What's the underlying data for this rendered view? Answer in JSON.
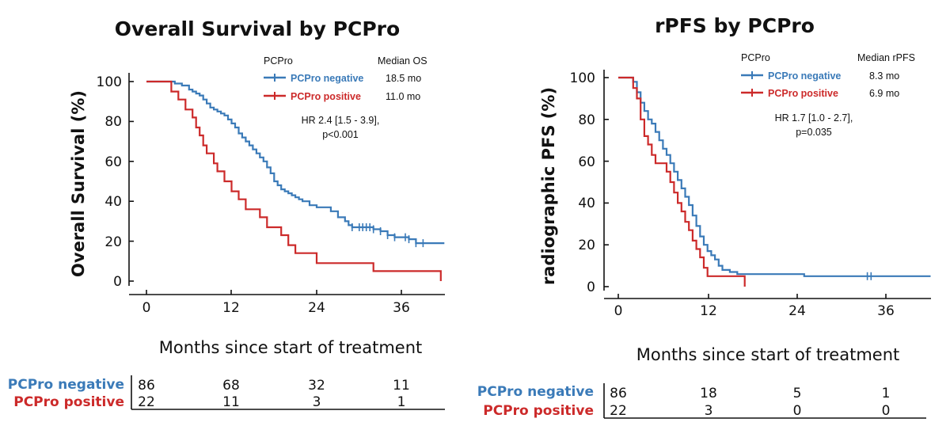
{
  "colors": {
    "negative": "#3a7ab8",
    "positive": "#cc2a2a"
  },
  "chart_data": [
    {
      "type": "line",
      "title": "Overall Survival by PCPro",
      "xlabel": "Months since start of treatment",
      "ylabel": "Overall Survival (%)",
      "xlim": [
        0,
        42
      ],
      "ylim": [
        0,
        100
      ],
      "xticks": [
        "0",
        "12",
        "24",
        "36"
      ],
      "yticks": [
        "0",
        "20",
        "40",
        "60",
        "80",
        "100"
      ],
      "legend": {
        "header": "PCPro",
        "median_header": "Median OS",
        "entries": [
          {
            "name": "PCPro negative",
            "median": "18.5 mo"
          },
          {
            "name": "PCPro positive",
            "median": "11.0 mo"
          }
        ],
        "hr_line1": "HR 2.4 [1.5 - 3.9],",
        "hr_line2": "p<0.001"
      },
      "series": [
        {
          "name": "PCPro negative",
          "x": [
            0,
            3,
            4,
            5,
            6,
            6.5,
            7,
            7.5,
            8,
            8.5,
            9,
            9.5,
            10,
            10.5,
            11,
            11.5,
            12,
            12.5,
            13,
            13.5,
            14,
            14.5,
            15,
            15.5,
            16,
            16.5,
            17,
            17.5,
            18,
            18.5,
            19,
            19.5,
            20,
            20.5,
            21,
            21.5,
            22,
            23,
            24,
            26,
            27,
            28,
            28.5,
            29,
            30,
            31,
            32,
            33,
            34,
            35,
            36,
            37,
            38,
            39,
            42
          ],
          "y": [
            100,
            100,
            99,
            98,
            96,
            95,
            94,
            93,
            91,
            89,
            87,
            86,
            85,
            84,
            83,
            81,
            79,
            77,
            74,
            72,
            70,
            68,
            66,
            64,
            62,
            60,
            57,
            54,
            50,
            48,
            46,
            45,
            44,
            43,
            42,
            41,
            40,
            38,
            37,
            35,
            32,
            30,
            28,
            27,
            27,
            27,
            26,
            25,
            23,
            22,
            22,
            21,
            19,
            19,
            19
          ],
          "censor_x": [
            29,
            30,
            30.5,
            31,
            31.5,
            32,
            33,
            34,
            35,
            36.5,
            37,
            38,
            39
          ]
        },
        {
          "name": "PCPro positive",
          "x": [
            0,
            3.5,
            4.5,
            5.5,
            6.5,
            7,
            7.5,
            8,
            8.5,
            9.5,
            10,
            11,
            12,
            13,
            14,
            16,
            17,
            19,
            20,
            21,
            22,
            24,
            25,
            27,
            28,
            32,
            41.5
          ],
          "y": [
            100,
            95,
            91,
            86,
            82,
            77,
            73,
            68,
            64,
            59,
            55,
            50,
            45,
            41,
            36,
            32,
            27,
            23,
            18,
            14,
            14,
            9,
            9,
            9,
            9,
            5,
            0
          ]
        }
      ],
      "risk_table": {
        "rows": [
          {
            "name": "PCPro negative",
            "values": [
              "86",
              "68",
              "32",
              "11"
            ]
          },
          {
            "name": "PCPro positive",
            "values": [
              "22",
              "11",
              "3",
              "1"
            ]
          }
        ]
      }
    },
    {
      "type": "line",
      "title": "rPFS by PCPro",
      "xlabel": "Months since start of treatment",
      "ylabel": "radiographic PFS (%)",
      "xlim": [
        0,
        42
      ],
      "ylim": [
        0,
        100
      ],
      "xticks": [
        "0",
        "12",
        "24",
        "36"
      ],
      "yticks": [
        "0",
        "20",
        "40",
        "60",
        "80",
        "100"
      ],
      "legend": {
        "header": "PCPro",
        "median_header": "Median rPFS",
        "entries": [
          {
            "name": "PCPro negative",
            "median": "8.3 mo"
          },
          {
            "name": "PCPro positive",
            "median": "6.9 mo"
          }
        ],
        "hr_line1": "HR 1.7 [1.0 - 2.7],",
        "hr_line2": "p=0.035"
      },
      "series": [
        {
          "name": "PCPro negative",
          "x": [
            0,
            2,
            2.5,
            3,
            3.5,
            4,
            4.5,
            5,
            5.5,
            6,
            6.5,
            7,
            7.5,
            8,
            8.5,
            9,
            9.5,
            10,
            10.5,
            11,
            11.5,
            12,
            12.5,
            13,
            13.5,
            14,
            15,
            16,
            17,
            25,
            42
          ],
          "y": [
            100,
            98,
            93,
            88,
            84,
            80,
            78,
            74,
            70,
            66,
            63,
            59,
            55,
            51,
            47,
            43,
            39,
            34,
            29,
            24,
            20,
            17,
            15,
            13,
            10,
            8,
            7,
            6,
            6,
            5,
            5
          ],
          "censor_x": [
            33.5,
            34
          ]
        },
        {
          "name": "PCPro positive",
          "x": [
            0,
            2,
            2.5,
            3,
            3.5,
            4,
            4.5,
            5,
            5.5,
            6,
            6.5,
            7,
            7.5,
            8,
            8.5,
            9,
            9.5,
            10,
            10.5,
            11,
            11.5,
            12,
            13,
            17
          ],
          "y": [
            100,
            95,
            90,
            80,
            72,
            68,
            63,
            59,
            59,
            59,
            55,
            50,
            45,
            40,
            36,
            31,
            27,
            22,
            18,
            14,
            9,
            5,
            5,
            0
          ]
        }
      ],
      "risk_table": {
        "rows": [
          {
            "name": "PCPro negative",
            "values": [
              "86",
              "18",
              "5",
              "1"
            ]
          },
          {
            "name": "PCPro positive",
            "values": [
              "22",
              "3",
              "0",
              "0"
            ]
          }
        ]
      }
    }
  ]
}
